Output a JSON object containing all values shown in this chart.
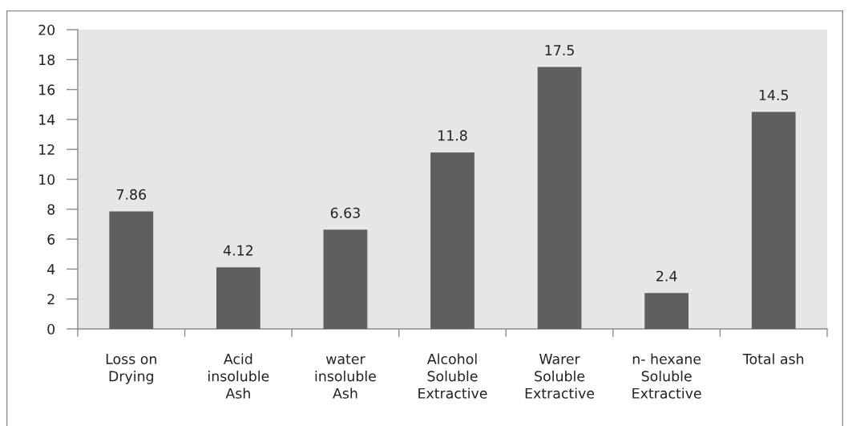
{
  "chart_data": {
    "type": "bar",
    "categories": [
      "Loss on\nDrying",
      "Acid\ninsoluble\nAsh",
      "water\ninsoluble\nAsh",
      "Alcohol\nSoluble\nExtractive",
      "Warer\nSoluble\nExtractive",
      "n- hexane\nSoluble\nExtractive",
      "Total ash"
    ],
    "values": [
      7.86,
      4.12,
      6.63,
      11.8,
      17.5,
      2.4,
      14.5
    ],
    "color": "#5f5f5f",
    "ylim": [
      0,
      20
    ],
    "yticks": [
      0,
      2,
      4,
      6,
      8,
      10,
      12,
      14,
      16,
      18,
      20
    ],
    "data_labels": true
  }
}
